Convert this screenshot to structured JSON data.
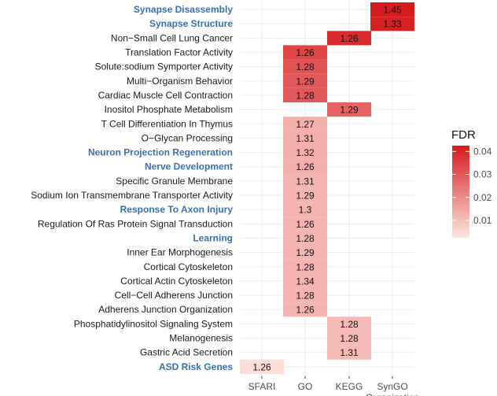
{
  "chart_data": {
    "type": "heatmap",
    "title": "",
    "xlabel": "",
    "ylabel": "",
    "categories_x": [
      {
        "lines": [
          "SFARI"
        ]
      },
      {
        "lines": [
          "GO"
        ]
      },
      {
        "lines": [
          "KEGG"
        ]
      },
      {
        "lines": [
          "SynGO",
          "Organization"
        ]
      }
    ],
    "rows": [
      {
        "label": "Synapse Disassembly",
        "highlight": true
      },
      {
        "label": "Synapse Structure",
        "highlight": true
      },
      {
        "label": "Non−Small Cell Lung Cancer",
        "highlight": false
      },
      {
        "label": "Translation Factor Activity",
        "highlight": false
      },
      {
        "label": "Solute:sodium Symporter Activity",
        "highlight": false
      },
      {
        "label": "Multi−Organism Behavior",
        "highlight": false
      },
      {
        "label": "Cardiac Muscle Cell Contraction",
        "highlight": false
      },
      {
        "label": "Inositol Phosphate Metabolism",
        "highlight": false
      },
      {
        "label": "T Cell Differentiation In Thymus",
        "highlight": false
      },
      {
        "label": "O−Glycan Processing",
        "highlight": false
      },
      {
        "label": "Neuron Projection Regeneration",
        "highlight": true
      },
      {
        "label": "Nerve Development",
        "highlight": true
      },
      {
        "label": "Specific Granule Membrane",
        "highlight": false
      },
      {
        "label": "Sodium Ion Transmembrane Transporter Activity",
        "highlight": false
      },
      {
        "label": "Response To Axon Injury",
        "highlight": true
      },
      {
        "label": "Regulation Of Ras Protein Signal Transduction",
        "highlight": false
      },
      {
        "label": "Learning",
        "highlight": true
      },
      {
        "label": "Inner Ear Morphogenesis",
        "highlight": false
      },
      {
        "label": "Cortical Cytoskeleton",
        "highlight": false
      },
      {
        "label": "Cortical Actin Cytoskeleton",
        "highlight": false
      },
      {
        "label": "Cell−Cell Adherens Junction",
        "highlight": false
      },
      {
        "label": "Adherens Junction Organization",
        "highlight": false
      },
      {
        "label": "Phosphatidylinositol Signaling System",
        "highlight": false
      },
      {
        "label": "Melanogenesis",
        "highlight": false
      },
      {
        "label": "Gastric Acid Secretion",
        "highlight": false
      },
      {
        "label": "ASD Risk Genes",
        "highlight": true
      }
    ],
    "cells": [
      {
        "row": 0,
        "col": 3,
        "label": "1.45",
        "fdr": 0.042
      },
      {
        "row": 1,
        "col": 3,
        "label": "1.33",
        "fdr": 0.041
      },
      {
        "row": 2,
        "col": 2,
        "label": "1.26",
        "fdr": 0.039
      },
      {
        "row": 3,
        "col": 1,
        "label": "1.26",
        "fdr": 0.034
      },
      {
        "row": 4,
        "col": 1,
        "label": "1.28",
        "fdr": 0.031
      },
      {
        "row": 5,
        "col": 1,
        "label": "1.29",
        "fdr": 0.03
      },
      {
        "row": 6,
        "col": 1,
        "label": "1.28",
        "fdr": 0.03
      },
      {
        "row": 7,
        "col": 2,
        "label": "1.29",
        "fdr": 0.028
      },
      {
        "row": 8,
        "col": 1,
        "label": "1.27",
        "fdr": 0.013
      },
      {
        "row": 9,
        "col": 1,
        "label": "1.31",
        "fdr": 0.013
      },
      {
        "row": 10,
        "col": 1,
        "label": "1.32",
        "fdr": 0.013
      },
      {
        "row": 11,
        "col": 1,
        "label": "1.26",
        "fdr": 0.013
      },
      {
        "row": 12,
        "col": 1,
        "label": "1.31",
        "fdr": 0.012
      },
      {
        "row": 13,
        "col": 1,
        "label": "1.29",
        "fdr": 0.012
      },
      {
        "row": 14,
        "col": 1,
        "label": "1.3",
        "fdr": 0.012
      },
      {
        "row": 15,
        "col": 1,
        "label": "1.26",
        "fdr": 0.012
      },
      {
        "row": 16,
        "col": 1,
        "label": "1.28",
        "fdr": 0.012
      },
      {
        "row": 17,
        "col": 1,
        "label": "1.29",
        "fdr": 0.012
      },
      {
        "row": 18,
        "col": 1,
        "label": "1.28",
        "fdr": 0.012
      },
      {
        "row": 19,
        "col": 1,
        "label": "1.34",
        "fdr": 0.012
      },
      {
        "row": 20,
        "col": 1,
        "label": "1.28",
        "fdr": 0.012
      },
      {
        "row": 21,
        "col": 1,
        "label": "1.26",
        "fdr": 0.012
      },
      {
        "row": 22,
        "col": 2,
        "label": "1.28",
        "fdr": 0.011
      },
      {
        "row": 23,
        "col": 2,
        "label": "1.28",
        "fdr": 0.011
      },
      {
        "row": 24,
        "col": 2,
        "label": "1.31",
        "fdr": 0.011
      },
      {
        "row": 25,
        "col": 0,
        "label": "1.26",
        "fdr": 0.004
      }
    ],
    "legend": {
      "title": "FDR",
      "placement": "right",
      "min": 0.0025,
      "max": 0.0425,
      "ticks": [
        {
          "value": 0.04,
          "label": "0.04"
        },
        {
          "value": 0.03,
          "label": "0.03"
        },
        {
          "value": 0.02,
          "label": "0.02"
        },
        {
          "value": 0.01,
          "label": "0.01"
        }
      ],
      "color_low": "#fde6de",
      "color_high": "#d7191c"
    },
    "grid": true,
    "highlight_color": "#3a6fb5"
  }
}
